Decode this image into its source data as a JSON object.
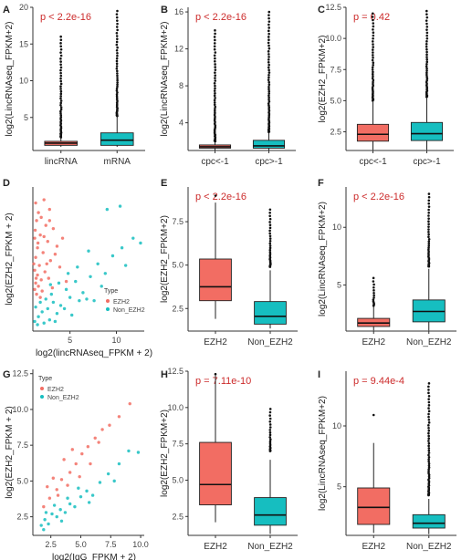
{
  "figure": {
    "colors": {
      "red": "#f26d63",
      "teal": "#16bec0",
      "axis": "#333333",
      "text": "#222222",
      "pval": "#cc2b2b"
    }
  },
  "chart_data": [
    {
      "panel": "A",
      "type": "box",
      "ylabel": "log2(LincRNAseq_FPKM+2)",
      "pvalue": "p < 2.2e-16",
      "categories": [
        "lincRNA",
        "mRNA"
      ],
      "ylim": [
        0.5,
        20
      ],
      "yticks": [
        "5",
        "10",
        "15",
        "20"
      ],
      "boxes": [
        {
          "q1": 1.2,
          "med": 1.5,
          "q3": 1.75,
          "wlo": 1.0,
          "whi": 2.3,
          "outHi": 16,
          "outLo": 2.3,
          "color": "red"
        },
        {
          "q1": 1.2,
          "med": 1.9,
          "q3": 2.9,
          "wlo": 1.0,
          "whi": 5.2,
          "outHi": 19.5,
          "outLo": 5.2,
          "color": "teal"
        }
      ]
    },
    {
      "panel": "B",
      "type": "box",
      "ylabel": "log2(LincRNAseq_FPKM+2)",
      "pvalue": "p < 2.2e-16",
      "categories": [
        "cpc<-1",
        "cpc>-1"
      ],
      "ylim": [
        1,
        16.5
      ],
      "yticks": [
        "4",
        "8",
        "12",
        "16"
      ],
      "boxes": [
        {
          "q1": 1.25,
          "med": 1.4,
          "q3": 1.6,
          "wlo": 1.05,
          "whi": 2.0,
          "outHi": 14,
          "outLo": 2.0,
          "color": "red"
        },
        {
          "q1": 1.25,
          "med": 1.5,
          "q3": 2.1,
          "wlo": 1.05,
          "whi": 3.0,
          "outHi": 16,
          "outLo": 3.0,
          "color": "teal"
        }
      ]
    },
    {
      "panel": "C",
      "type": "box",
      "ylabel": "log2(EZH2_FPKM+2)",
      "pvalue": "p = 0.42",
      "categories": [
        "cpc<-1",
        "cpc>-1"
      ],
      "ylim": [
        1,
        12.5
      ],
      "yticks": [
        "2.5",
        "5.0",
        "7.5",
        "10.0",
        "12.5"
      ],
      "boxes": [
        {
          "q1": 1.75,
          "med": 2.3,
          "q3": 3.1,
          "wlo": 1.05,
          "whi": 4.9,
          "outHi": 12,
          "outLo": 5.0,
          "color": "red"
        },
        {
          "q1": 1.8,
          "med": 2.35,
          "q3": 3.25,
          "wlo": 1.05,
          "whi": 5.2,
          "outHi": 12.2,
          "outLo": 5.3,
          "color": "teal"
        }
      ]
    },
    {
      "panel": "D",
      "type": "scatter",
      "xlabel": "log2(lincRNAseq_FPKM + 2)",
      "ylabel": "log2(EZH2_FPKM + 2)",
      "xticks": [
        "5",
        "10"
      ],
      "xlim": [
        1,
        13
      ],
      "ylim": [
        1,
        10
      ],
      "legend": {
        "title": "Type",
        "items": [
          "EZH2",
          "Non_EZH2"
        ],
        "placement": "bottom-right"
      },
      "series": [
        {
          "name": "EZH2",
          "color": "red",
          "points": [
            [
              1.3,
              9
            ],
            [
              2.2,
              9.2
            ],
            [
              1.6,
              8.4
            ],
            [
              2.8,
              8.6
            ],
            [
              1.4,
              7.9
            ],
            [
              2.4,
              7.6
            ],
            [
              3.2,
              7.4
            ],
            [
              1.8,
              7.0
            ],
            [
              1.2,
              6.8
            ],
            [
              2.6,
              6.6
            ],
            [
              1.5,
              6.2
            ],
            [
              3.6,
              6.3
            ],
            [
              2.1,
              5.9
            ],
            [
              1.3,
              5.6
            ],
            [
              2.9,
              5.4
            ],
            [
              1.7,
              5.1
            ],
            [
              1.2,
              4.8
            ],
            [
              2.3,
              4.7
            ],
            [
              3.9,
              5.0
            ],
            [
              1.5,
              4.5
            ],
            [
              1.9,
              4.2
            ],
            [
              1.3,
              4.0
            ],
            [
              2.7,
              4.3
            ],
            [
              1.6,
              3.8
            ],
            [
              1.2,
              3.6
            ],
            [
              2.0,
              3.5
            ],
            [
              1.4,
              3.3
            ],
            [
              1.8,
              3.1
            ],
            [
              3.1,
              3.7
            ],
            [
              4.6,
              4.1
            ],
            [
              1.25,
              7.3
            ],
            [
              1.9,
              8.1
            ],
            [
              2.5,
              5.2
            ],
            [
              3.4,
              5.8
            ],
            [
              1.35,
              4.3
            ],
            [
              1.55,
              6.5
            ],
            [
              2.2,
              6.9
            ],
            [
              4.2,
              6.8
            ],
            [
              1.1,
              5.2
            ],
            [
              2.8,
              7.9
            ]
          ]
        },
        {
          "name": "Non_EZH2",
          "color": "teal",
          "points": [
            [
              1.3,
              2.5
            ],
            [
              2.0,
              2.2
            ],
            [
              1.6,
              1.9
            ],
            [
              2.6,
              2.4
            ],
            [
              3.2,
              2.8
            ],
            [
              1.2,
              1.6
            ],
            [
              4.0,
              2.6
            ],
            [
              5.0,
              3.1
            ],
            [
              2.8,
              1.7
            ],
            [
              3.6,
              2.1
            ],
            [
              4.6,
              3.6
            ],
            [
              5.6,
              4.1
            ],
            [
              6.4,
              3.4
            ],
            [
              7.2,
              4.4
            ],
            [
              8.0,
              5.2
            ],
            [
              8.8,
              4.6
            ],
            [
              9.6,
              5.7
            ],
            [
              10.6,
              6.2
            ],
            [
              11.8,
              6.8
            ],
            [
              12.6,
              6.5
            ],
            [
              1.8,
              2.8
            ],
            [
              2.4,
              3.0
            ],
            [
              3.0,
              3.3
            ],
            [
              4.4,
              2.4
            ],
            [
              5.2,
              2.0
            ],
            [
              6.0,
              2.9
            ],
            [
              3.8,
              4.0
            ],
            [
              5.8,
              5.0
            ],
            [
              7.0,
              6.0
            ],
            [
              9.0,
              8.6
            ],
            [
              10.4,
              8.8
            ],
            [
              1.5,
              1.4
            ],
            [
              2.2,
              1.5
            ],
            [
              6.8,
              3.0
            ],
            [
              4.8,
              4.6
            ],
            [
              3.4,
              1.6
            ],
            [
              8.4,
              3.8
            ],
            [
              11.0,
              5.1
            ],
            [
              7.6,
              2.9
            ],
            [
              2.9,
              3.9
            ]
          ]
        }
      ]
    },
    {
      "panel": "E",
      "type": "box",
      "ylabel": "log2(EZH2_FPKM+2)",
      "pvalue": "p < 2.2e-16",
      "categories": [
        "EZH2",
        "Non_EZH2"
      ],
      "ylim": [
        1.2,
        9.5
      ],
      "yticks": [
        "2.5",
        "5.0",
        "7.5"
      ],
      "boxes": [
        {
          "q1": 2.95,
          "med": 3.75,
          "q3": 5.35,
          "wlo": 1.9,
          "whi": 8.6,
          "outHi": 9.0,
          "outLo": 9.0,
          "color": "red"
        },
        {
          "q1": 1.6,
          "med": 2.05,
          "q3": 2.9,
          "wlo": 1.35,
          "whi": 4.7,
          "outHi": 8.2,
          "outLo": 4.9,
          "color": "teal"
        }
      ]
    },
    {
      "panel": "F",
      "type": "box",
      "ylabel": "log2(LincRNAseq_FPKM+2)",
      "pvalue": "p < 2.2e-16",
      "categories": [
        "EZH2",
        "Non_EZH2"
      ],
      "ylim": [
        1,
        13.5
      ],
      "yticks": [
        "5",
        "10"
      ],
      "boxes": [
        {
          "q1": 1.4,
          "med": 1.7,
          "q3": 2.1,
          "wlo": 1.05,
          "whi": 3.1,
          "outHi": 5.6,
          "outLo": 3.2,
          "color": "red"
        },
        {
          "q1": 1.8,
          "med": 2.7,
          "q3": 3.7,
          "wlo": 1.05,
          "whi": 6.4,
          "outHi": 12.9,
          "outLo": 6.6,
          "color": "teal"
        }
      ]
    },
    {
      "panel": "G",
      "type": "scatter",
      "xlabel": "log2(IgG_FPKM + 2)",
      "ylabel": "log2(EZH2_FPKM + 2)",
      "xticks": [
        "2.5",
        "5.0",
        "7.5",
        "10.0"
      ],
      "yticks": [
        "2.5",
        "5.0",
        "7.5",
        "10.0",
        "12.5"
      ],
      "xlim": [
        1,
        10.3
      ],
      "ylim": [
        1.2,
        12.8
      ],
      "legend": {
        "title": "Type",
        "items": [
          "EZH2",
          "Non_EZH2"
        ],
        "placement": "top-left"
      },
      "series": [
        {
          "name": "EZH2",
          "color": "red",
          "points": [
            [
              2.4,
              3.8
            ],
            [
              3.0,
              4.4
            ],
            [
              3.4,
              5.1
            ],
            [
              4.1,
              5.6
            ],
            [
              4.6,
              6.2
            ],
            [
              5.1,
              6.9
            ],
            [
              5.6,
              7.4
            ],
            [
              6.2,
              8.0
            ],
            [
              6.8,
              8.6
            ],
            [
              7.4,
              8.9
            ],
            [
              2.7,
              5.2
            ],
            [
              3.6,
              6.5
            ],
            [
              4.3,
              7.2
            ],
            [
              1.9,
              3.2
            ],
            [
              5.8,
              6.2
            ],
            [
              3.1,
              4.0
            ],
            [
              4.9,
              5.3
            ],
            [
              6.5,
              7.7
            ],
            [
              8.2,
              9.5
            ],
            [
              9.1,
              10.4
            ],
            [
              2.2,
              4.6
            ],
            [
              3.9,
              4.7
            ]
          ]
        },
        {
          "name": "Non_EZH2",
          "color": "teal",
          "points": [
            [
              1.7,
              1.9
            ],
            [
              2.0,
              2.3
            ],
            [
              2.3,
              2.0
            ],
            [
              2.6,
              2.7
            ],
            [
              3.0,
              2.5
            ],
            [
              3.3,
              3.0
            ],
            [
              3.7,
              2.8
            ],
            [
              4.1,
              3.4
            ],
            [
              4.5,
              3.2
            ],
            [
              5.0,
              3.9
            ],
            [
              5.5,
              4.3
            ],
            [
              6.0,
              4.0
            ],
            [
              6.6,
              4.9
            ],
            [
              7.3,
              5.5
            ],
            [
              8.2,
              6.2
            ],
            [
              9.0,
              7.1
            ],
            [
              9.8,
              7.0
            ],
            [
              2.1,
              2.8
            ],
            [
              2.8,
              3.3
            ],
            [
              3.4,
              2.2
            ],
            [
              4.8,
              4.5
            ],
            [
              5.7,
              3.5
            ],
            [
              7.8,
              5.0
            ],
            [
              1.9,
              1.6
            ],
            [
              3.9,
              3.8
            ]
          ]
        }
      ]
    },
    {
      "panel": "H",
      "type": "box",
      "ylabel": "log2(EZH2_FPKM+2)",
      "pvalue": "p = 7.11e-10",
      "categories": [
        "EZH2",
        "Non_EZH2"
      ],
      "ylim": [
        1.2,
        12.5
      ],
      "yticks": [
        "2.5",
        "5.0",
        "7.5",
        "10.0",
        "12.5"
      ],
      "boxes": [
        {
          "q1": 3.3,
          "med": 4.7,
          "q3": 7.6,
          "wlo": 2.1,
          "whi": 12.3,
          "outHi": 12.3,
          "outLo": 12.3,
          "color": "red"
        },
        {
          "q1": 1.9,
          "med": 2.6,
          "q3": 3.8,
          "wlo": 1.3,
          "whi": 6.4,
          "outHi": 9.9,
          "outLo": 7.0,
          "color": "teal"
        }
      ]
    },
    {
      "panel": "I",
      "type": "box",
      "ylabel": "log2(LincRNAseq_FPKM+2)",
      "pvalue": "p = 9.44e-4",
      "categories": [
        "EZH2",
        "Non_EZH2"
      ],
      "ylim": [
        1,
        14.5
      ],
      "yticks": [
        "5",
        "10"
      ],
      "boxes": [
        {
          "q1": 1.9,
          "med": 3.3,
          "q3": 4.9,
          "wlo": 1.2,
          "whi": 8.6,
          "outHi": 10.9,
          "outLo": 10.9,
          "color": "red"
        },
        {
          "q1": 1.6,
          "med": 2.0,
          "q3": 2.7,
          "wlo": 1.1,
          "whi": 4.0,
          "outHi": 13.5,
          "outLo": 4.3,
          "color": "teal"
        }
      ]
    }
  ]
}
